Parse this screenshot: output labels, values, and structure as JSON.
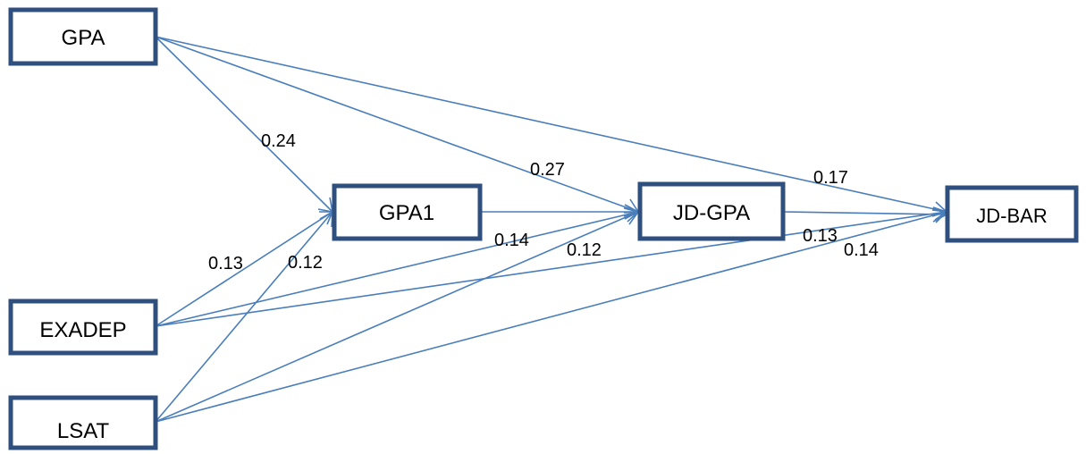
{
  "nodes": {
    "gpa": "GPA",
    "exadep": "EXADEP",
    "lsat": "LSAT",
    "gpa1": "GPA1",
    "jd_gpa": "JD-GPA",
    "jd_bar": "JD-BAR"
  },
  "edge_labels": {
    "gpa_gpa1": "0.24",
    "gpa_jdgpa": "0.27",
    "gpa_jdbar": "0.17",
    "gpa1_jdgpa": "0.14",
    "exadep_gpa1": "0.13",
    "lsat_gpa1": "0.12",
    "lsat_jdgpa": "0.12",
    "exadep_jdbar": "0.13",
    "lsat_jdbar": "0.14"
  },
  "colors": {
    "box_border": "#2f4f7f",
    "arrow": "#4a7ebb"
  }
}
